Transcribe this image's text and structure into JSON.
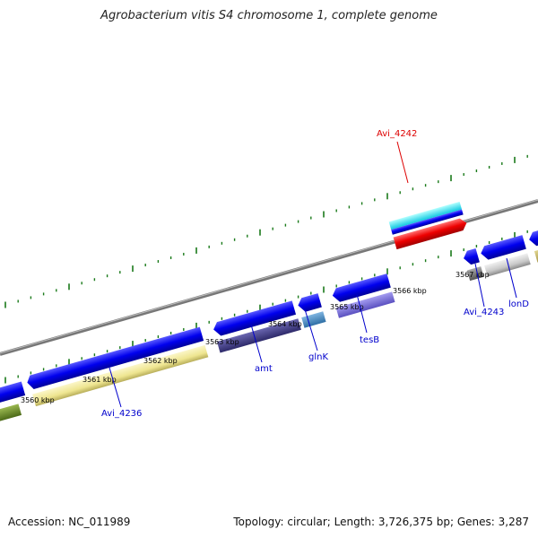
{
  "title": "Agrobacterium vitis S4 chromosome 1, complete genome",
  "footer": {
    "accession": "Accession: NC_011989",
    "topology": "Topology: circular; Length: 3,726,375 bp; Genes: 3,287"
  },
  "scale_labels": [
    "3560 kbp",
    "3561 kbp",
    "3562 kbp",
    "3563 kbp",
    "3564 kbp",
    "3565 kbp",
    "3566 kbp",
    "3567 kbp"
  ],
  "gene_labels": [
    {
      "text": "Avi_4242",
      "color": "#dd0000"
    },
    {
      "text": "Avi_4236",
      "color": "#0000cc"
    },
    {
      "text": "amt",
      "color": "#0000cc"
    },
    {
      "text": "glnK",
      "color": "#0000cc"
    },
    {
      "text": "tesB",
      "color": "#0000cc"
    },
    {
      "text": "Avi_4243",
      "color": "#0000cc"
    },
    {
      "text": "lonD",
      "color": "#0000cc"
    }
  ],
  "colors": {
    "backbone": "#777777",
    "tick": "#1a7a1a",
    "gene_blue": "#0000ee",
    "feature_red": "#ee0000",
    "feature_cyan": "#22ddee"
  }
}
